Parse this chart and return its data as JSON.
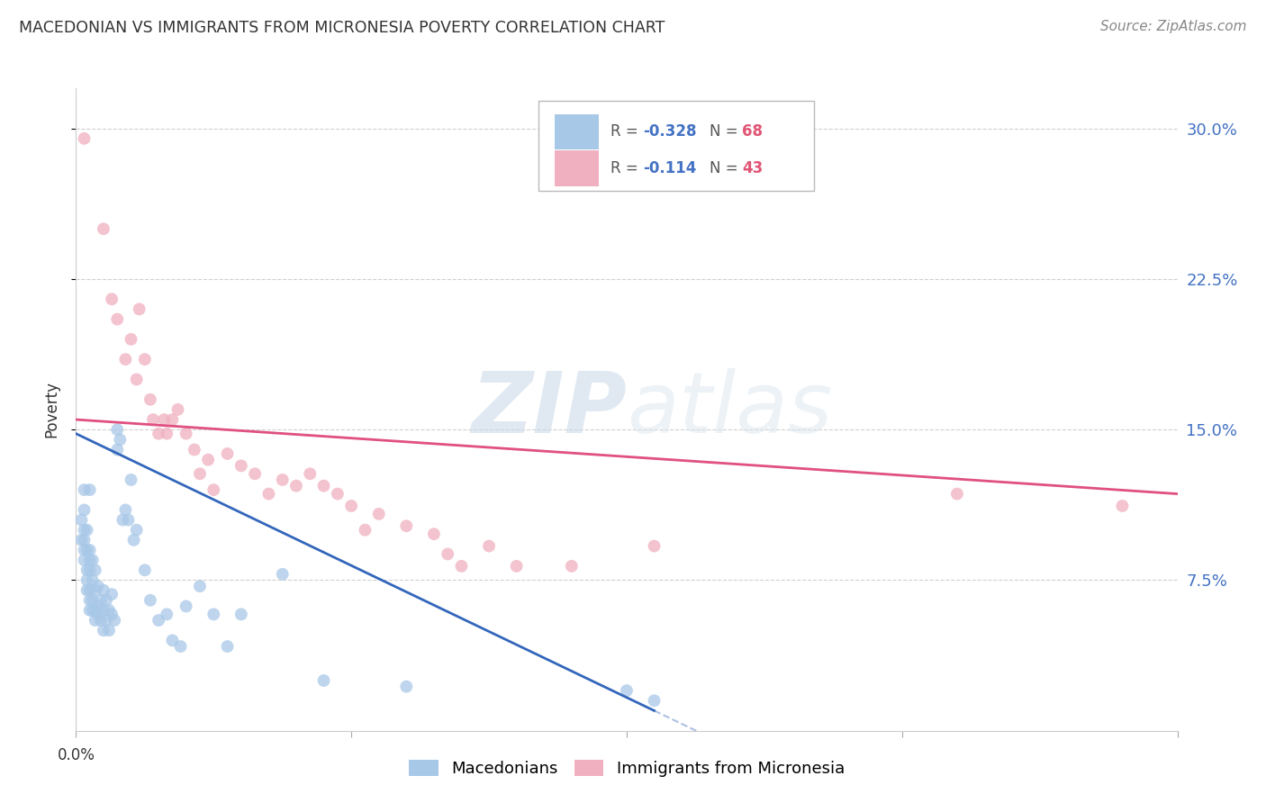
{
  "title": "MACEDONIAN VS IMMIGRANTS FROM MICRONESIA POVERTY CORRELATION CHART",
  "source": "Source: ZipAtlas.com",
  "ylabel": "Poverty",
  "xlim": [
    0.0,
    0.4
  ],
  "ylim": [
    0.0,
    0.32
  ],
  "ytick_values": [
    0.075,
    0.15,
    0.225,
    0.3
  ],
  "ytick_labels": [
    "7.5%",
    "15.0%",
    "22.5%",
    "30.0%"
  ],
  "xtick_values": [
    0.0,
    0.1,
    0.2,
    0.3,
    0.4
  ],
  "grid_color": "#d0d0d0",
  "background_color": "#ffffff",
  "blue_color": "#a8c8e8",
  "pink_color": "#f0b0c0",
  "blue_line_color": "#3366bb",
  "pink_line_color": "#e05080",
  "blue_R": -0.328,
  "blue_N": 68,
  "pink_R": -0.114,
  "pink_N": 43,
  "legend_label_blue": "Macedonians",
  "legend_label_pink": "Immigrants from Micronesia",
  "watermark_zip": "ZIP",
  "watermark_atlas": "atlas",
  "blue_line_x0": 0.0,
  "blue_line_y0": 0.148,
  "blue_line_x1": 0.21,
  "blue_line_y1": 0.01,
  "pink_line_x0": 0.0,
  "pink_line_y0": 0.155,
  "pink_line_x1": 0.4,
  "pink_line_y1": 0.118,
  "macedonian_x": [
    0.002,
    0.002,
    0.003,
    0.003,
    0.003,
    0.003,
    0.003,
    0.003,
    0.004,
    0.004,
    0.004,
    0.004,
    0.004,
    0.005,
    0.005,
    0.005,
    0.005,
    0.005,
    0.005,
    0.005,
    0.006,
    0.006,
    0.006,
    0.006,
    0.007,
    0.007,
    0.007,
    0.007,
    0.008,
    0.008,
    0.008,
    0.009,
    0.009,
    0.01,
    0.01,
    0.01,
    0.011,
    0.011,
    0.012,
    0.012,
    0.013,
    0.013,
    0.014,
    0.015,
    0.015,
    0.016,
    0.017,
    0.018,
    0.019,
    0.02,
    0.021,
    0.022,
    0.025,
    0.027,
    0.03,
    0.033,
    0.035,
    0.038,
    0.04,
    0.045,
    0.05,
    0.055,
    0.06,
    0.075,
    0.09,
    0.12,
    0.2,
    0.21
  ],
  "macedonian_y": [
    0.095,
    0.105,
    0.085,
    0.09,
    0.095,
    0.1,
    0.11,
    0.12,
    0.07,
    0.075,
    0.08,
    0.09,
    0.1,
    0.06,
    0.065,
    0.07,
    0.08,
    0.085,
    0.09,
    0.12,
    0.06,
    0.065,
    0.075,
    0.085,
    0.055,
    0.06,
    0.07,
    0.08,
    0.058,
    0.062,
    0.072,
    0.055,
    0.065,
    0.05,
    0.06,
    0.07,
    0.055,
    0.065,
    0.05,
    0.06,
    0.058,
    0.068,
    0.055,
    0.14,
    0.15,
    0.145,
    0.105,
    0.11,
    0.105,
    0.125,
    0.095,
    0.1,
    0.08,
    0.065,
    0.055,
    0.058,
    0.045,
    0.042,
    0.062,
    0.072,
    0.058,
    0.042,
    0.058,
    0.078,
    0.025,
    0.022,
    0.02,
    0.015
  ],
  "micronesia_x": [
    0.003,
    0.01,
    0.013,
    0.015,
    0.018,
    0.02,
    0.022,
    0.023,
    0.025,
    0.027,
    0.028,
    0.03,
    0.032,
    0.033,
    0.035,
    0.037,
    0.04,
    0.043,
    0.045,
    0.048,
    0.05,
    0.055,
    0.06,
    0.065,
    0.07,
    0.075,
    0.08,
    0.085,
    0.09,
    0.095,
    0.1,
    0.105,
    0.11,
    0.12,
    0.13,
    0.135,
    0.14,
    0.15,
    0.16,
    0.18,
    0.21,
    0.32,
    0.38
  ],
  "micronesia_y": [
    0.295,
    0.25,
    0.215,
    0.205,
    0.185,
    0.195,
    0.175,
    0.21,
    0.185,
    0.165,
    0.155,
    0.148,
    0.155,
    0.148,
    0.155,
    0.16,
    0.148,
    0.14,
    0.128,
    0.135,
    0.12,
    0.138,
    0.132,
    0.128,
    0.118,
    0.125,
    0.122,
    0.128,
    0.122,
    0.118,
    0.112,
    0.1,
    0.108,
    0.102,
    0.098,
    0.088,
    0.082,
    0.092,
    0.082,
    0.082,
    0.092,
    0.118,
    0.112
  ]
}
